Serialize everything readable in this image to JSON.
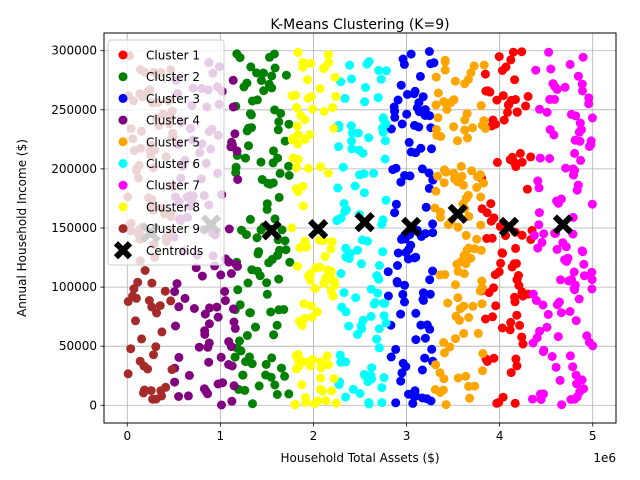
{
  "chart_data": {
    "type": "scatter",
    "title": "K-Means Clustering (K=9)",
    "xlabel": "Household Total Assets ($)",
    "ylabel": "Annual Household Income ($)",
    "x_offset_label": "1e6",
    "xlim": [
      -0.25,
      5.25
    ],
    "ylim": [
      -15000,
      315000
    ],
    "x_ticks": [
      0,
      1,
      2,
      3,
      4,
      5
    ],
    "x_tick_labels": [
      "0",
      "1",
      "2",
      "3",
      "4",
      "5"
    ],
    "y_ticks": [
      0,
      50000,
      100000,
      150000,
      200000,
      250000,
      300000
    ],
    "y_tick_labels": [
      "0",
      "50000",
      "100000",
      "150000",
      "200000",
      "250000",
      "300000"
    ],
    "grid": true,
    "legend_position": "top-left",
    "series": [
      {
        "name": "Cluster 1",
        "color": "#ff0000",
        "x_range": [
          3.8,
          4.35
        ],
        "y_range": [
          0,
          300000
        ],
        "count": 90
      },
      {
        "name": "Cluster 2",
        "color": "#008000",
        "x_range": [
          1.15,
          1.75
        ],
        "y_range": [
          0,
          300000
        ],
        "count": 110
      },
      {
        "name": "Cluster 3",
        "color": "#0000ff",
        "x_range": [
          2.8,
          3.3
        ],
        "y_range": [
          0,
          300000
        ],
        "count": 105
      },
      {
        "name": "Cluster 4",
        "color": "#800080",
        "x_range": [
          0.5,
          1.2
        ],
        "y_range": [
          0,
          300000
        ],
        "count": 110
      },
      {
        "name": "Cluster 5",
        "color": "#ffa500",
        "x_range": [
          3.3,
          3.85
        ],
        "y_range": [
          0,
          300000
        ],
        "count": 110
      },
      {
        "name": "Cluster 6",
        "color": "#00ffff",
        "x_range": [
          2.25,
          2.8
        ],
        "y_range": [
          0,
          300000
        ],
        "count": 100
      },
      {
        "name": "Cluster 7",
        "color": "#ff00ff",
        "x_range": [
          4.35,
          5.0
        ],
        "y_range": [
          0,
          300000
        ],
        "count": 115
      },
      {
        "name": "Cluster 8",
        "color": "#ffff00",
        "x_range": [
          1.75,
          2.25
        ],
        "y_range": [
          0,
          300000
        ],
        "count": 100
      },
      {
        "name": "Cluster 9",
        "color": "#a52a2a",
        "x_range": [
          0,
          0.5
        ],
        "y_range": [
          0,
          300000
        ],
        "count": 100
      }
    ],
    "centroids": {
      "name": "Centroids",
      "color": "#000000",
      "points": [
        {
          "x": 4.1,
          "y": 151000
        },
        {
          "x": 1.55,
          "y": 148000
        },
        {
          "x": 3.05,
          "y": 151000
        },
        {
          "x": 0.9,
          "y": 153000
        },
        {
          "x": 3.55,
          "y": 162000
        },
        {
          "x": 2.55,
          "y": 155000
        },
        {
          "x": 4.68,
          "y": 153000
        },
        {
          "x": 2.05,
          "y": 149000
        },
        {
          "x": 0.25,
          "y": 146000
        }
      ]
    }
  }
}
